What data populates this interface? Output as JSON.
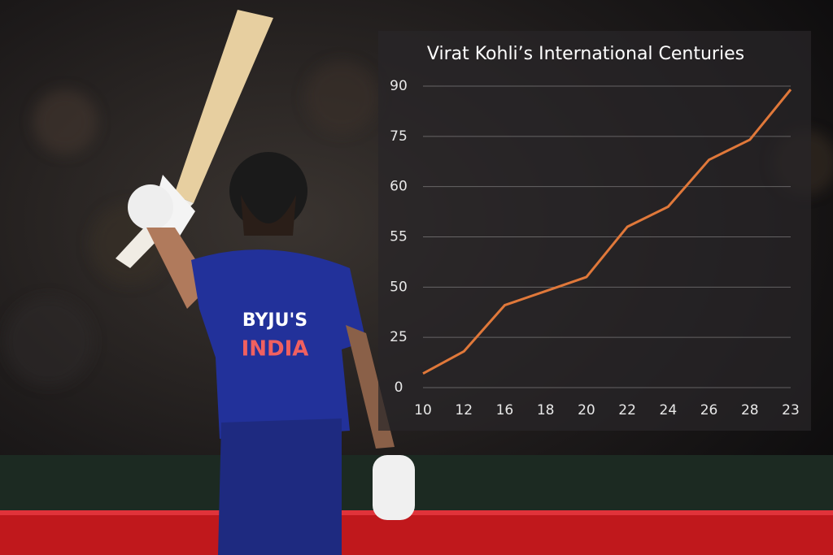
{
  "chart_data": {
    "type": "line",
    "title": "Virat Kohli’s International Centuries",
    "categories": [
      "10",
      "12",
      "16",
      "18",
      "20",
      "22",
      "24",
      "26",
      "28",
      "23"
    ],
    "values": [
      7,
      18,
      41,
      48,
      51,
      56,
      58,
      68,
      74,
      89
    ],
    "color": "#e0783a",
    "ylim": [
      0,
      90
    ],
    "yticks": [
      0,
      25,
      50,
      55,
      60,
      75,
      90
    ],
    "grid": true
  }
}
